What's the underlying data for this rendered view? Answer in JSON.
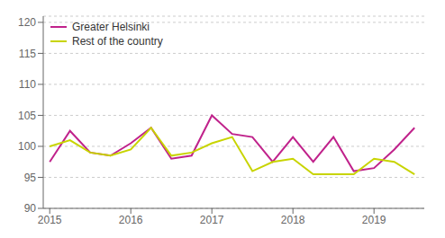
{
  "chart_data": {
    "type": "line",
    "x": [
      2015,
      2015.25,
      2015.5,
      2015.75,
      2016,
      2016.25,
      2016.5,
      2016.75,
      2017,
      2017.25,
      2017.5,
      2017.75,
      2018,
      2018.25,
      2018.5,
      2018.75,
      2019,
      2019.25,
      2019.5
    ],
    "series": [
      {
        "name": "Greater Helsinki",
        "color": "#c0228b",
        "values": [
          97.5,
          102.5,
          99.0,
          98.5,
          100.5,
          103.0,
          98.0,
          98.5,
          105.0,
          102.0,
          101.5,
          97.5,
          101.5,
          97.5,
          101.5,
          96.0,
          96.5,
          99.5,
          103.0
        ]
      },
      {
        "name": "Rest of the country",
        "color": "#c8d400",
        "values": [
          100.0,
          101.0,
          99.0,
          98.5,
          99.5,
          103.0,
          98.5,
          99.0,
          100.5,
          101.5,
          96.0,
          97.5,
          98.0,
          95.5,
          95.5,
          95.5,
          98.0,
          97.5,
          95.5
        ]
      }
    ],
    "xlim": [
      2014.92,
      2019.62
    ],
    "xticks": [
      2015,
      2016,
      2017,
      2018,
      2019
    ],
    "ylim": [
      90,
      121
    ],
    "yticks": [
      90,
      95,
      100,
      105,
      110,
      115,
      120
    ],
    "grid": true,
    "legend": "upper left"
  }
}
